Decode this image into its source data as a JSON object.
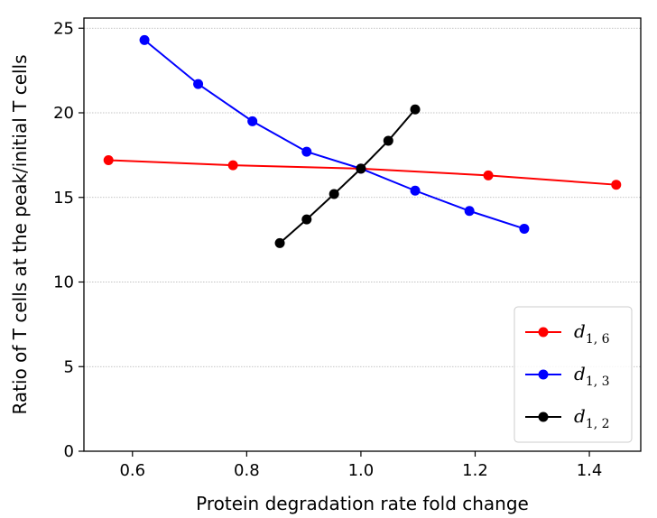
{
  "chart_data": {
    "type": "line",
    "title": "",
    "xlabel": "Protein degradation rate fold change",
    "ylabel": "Ratio of T cells at the peak/initial T cells",
    "xlim": [
      0.515,
      1.49
    ],
    "ylim": [
      0,
      25.6
    ],
    "xticks": [
      0.6,
      0.8,
      1.0,
      1.2,
      1.4
    ],
    "xtick_labels": [
      "0.6",
      "0.8",
      "1.0",
      "1.2",
      "1.4"
    ],
    "yticks": [
      0,
      5,
      10,
      15,
      20,
      25
    ],
    "ytick_labels": [
      "0",
      "5",
      "10",
      "15",
      "20",
      "25"
    ],
    "grid": "horizontal dotted",
    "legend_position": "lower-right",
    "series": [
      {
        "name": "d",
        "subscript": "1, 6",
        "color": "#ff0000",
        "x": [
          0.558,
          0.776,
          1.0,
          1.223,
          1.447
        ],
        "y": [
          17.2,
          16.9,
          16.7,
          16.3,
          15.75
        ]
      },
      {
        "name": "d",
        "subscript": "1, 3",
        "color": "#0000ff",
        "x": [
          0.621,
          0.715,
          0.81,
          0.905,
          1.0,
          1.095,
          1.19,
          1.286
        ],
        "y": [
          24.3,
          21.7,
          19.5,
          17.7,
          16.7,
          15.4,
          14.2,
          13.15
        ]
      },
      {
        "name": "d",
        "subscript": "1, 2",
        "color": "#000000",
        "x": [
          0.858,
          0.905,
          0.953,
          1.0,
          1.048,
          1.095
        ],
        "y": [
          12.3,
          13.7,
          15.2,
          16.7,
          18.35,
          20.2
        ]
      }
    ]
  }
}
